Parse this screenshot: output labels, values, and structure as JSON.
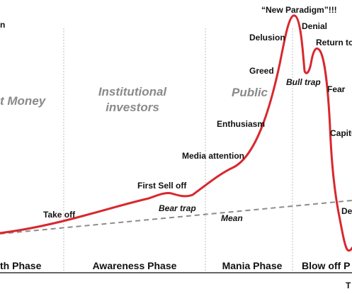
{
  "diagram": {
    "top_left_fragment": "n",
    "bottom_right_fragment": "T",
    "investor_groups": {
      "smart_money": "t Money",
      "institutional_line1": "Institutional",
      "institutional_line2": "investors",
      "public": "Public"
    },
    "phases": {
      "stealth": "th Phase",
      "awareness": "Awareness Phase",
      "mania": "Mania Phase",
      "blow_off": "Blow off P"
    },
    "curve_labels": {
      "take_off": "Take off",
      "first_sell_off": "First Sell off",
      "bear_trap": "Bear trap",
      "mean": "Mean",
      "media_attention": "Media attention",
      "enthusiasm": "Enthusiasm",
      "greed": "Greed",
      "delusion": "Delusion",
      "new_paradigm": "“New Paradigm”!!!",
      "denial": "Denial",
      "bull_trap": "Bull trap",
      "return_to": "Return to",
      "fear": "Fear",
      "capitu": "Capitu",
      "de": "De"
    },
    "colors": {
      "curve": "#d8282e",
      "mean_line": "#8c8c8c",
      "divider": "#bdbdbd",
      "axis": "#333333"
    }
  }
}
